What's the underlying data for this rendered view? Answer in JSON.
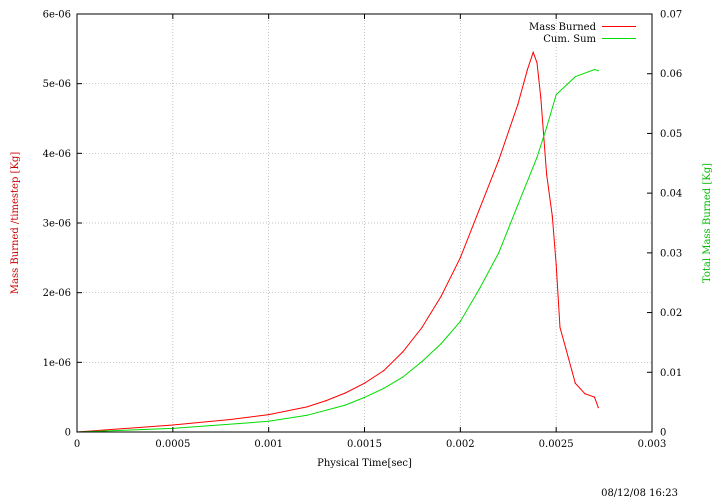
{
  "chart_data": {
    "type": "line",
    "xlabel": "Physical Time[sec]",
    "ylabel_left": "Mass Burned /timestep [Kg]",
    "ylabel_right": "Total Mass Burned [Kg]",
    "xlim": [
      0,
      0.003
    ],
    "ylim_left": [
      0,
      6e-06
    ],
    "ylim_right": [
      0,
      0.07
    ],
    "x_ticks": [
      "0",
      "0.0005",
      "0.001",
      "0.0015",
      "0.002",
      "0.0025",
      "0.003"
    ],
    "y_ticks_left": [
      "0",
      "1e-06",
      "2e-06",
      "3e-06",
      "4e-06",
      "5e-06",
      "6e-06"
    ],
    "y_ticks_right": [
      "0",
      "0.01",
      "0.02",
      "0.03",
      "0.04",
      "0.05",
      "0.06",
      "0.07"
    ],
    "grid": true,
    "legend_position": "top-right",
    "colors": {
      "mass_burned": "#ff0000",
      "cum_sum": "#00dd00",
      "grid": "#aaaaaa"
    },
    "series": [
      {
        "name": "Mass Burned",
        "axis": "left",
        "x": [
          0,
          0.0005,
          0.0008,
          0.001,
          0.0012,
          0.0013,
          0.0014,
          0.0015,
          0.0016,
          0.0017,
          0.0018,
          0.0019,
          0.002,
          0.0021,
          0.0022,
          0.0023,
          0.00235,
          0.00238,
          0.0024,
          0.00242,
          0.00245,
          0.00248,
          0.0025,
          0.00252,
          0.00255,
          0.00258,
          0.0026,
          0.00265,
          0.0027,
          0.00272
        ],
        "values": [
          0,
          1e-07,
          1.8e-07,
          2.5e-07,
          3.6e-07,
          4.5e-07,
          5.6e-07,
          7e-07,
          8.8e-07,
          1.15e-06,
          1.5e-06,
          1.95e-06,
          2.5e-06,
          3.2e-06,
          3.9e-06,
          4.7e-06,
          5.2e-06,
          5.45e-06,
          5.3e-06,
          4.8e-06,
          3.7e-06,
          3.1e-06,
          2.4e-06,
          1.5e-06,
          1.2e-06,
          9e-07,
          7e-07,
          5.5e-07,
          5e-07,
          3.5e-07
        ]
      },
      {
        "name": "Cum. Sum",
        "axis": "right",
        "x": [
          0,
          0.0005,
          0.001,
          0.0012,
          0.0014,
          0.0015,
          0.0016,
          0.0017,
          0.0018,
          0.0019,
          0.002,
          0.0021,
          0.0022,
          0.0023,
          0.0024,
          0.00245,
          0.0025,
          0.0026,
          0.0027,
          0.00272
        ],
        "values": [
          0,
          0.0006,
          0.0018,
          0.0028,
          0.0045,
          0.0058,
          0.0073,
          0.0092,
          0.0118,
          0.0148,
          0.0185,
          0.024,
          0.03,
          0.038,
          0.046,
          0.051,
          0.0565,
          0.0595,
          0.0607,
          0.0605
        ]
      }
    ]
  },
  "timestamp": "08/12/08 16:23"
}
